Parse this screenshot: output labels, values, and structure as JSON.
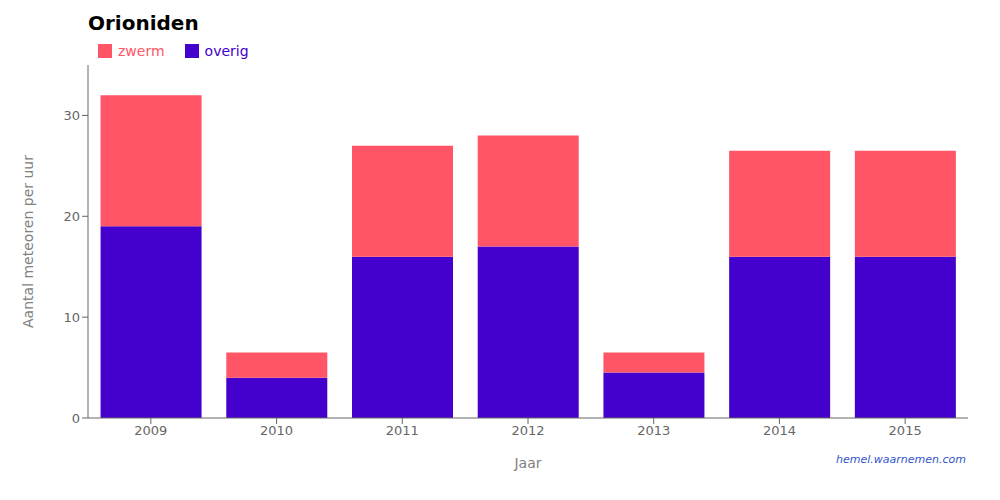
{
  "chart_data": {
    "type": "bar",
    "title": "Orioniden",
    "xlabel": "Jaar",
    "ylabel": "Aantal meteoren per uur",
    "categories": [
      "2009",
      "2010",
      "2011",
      "2012",
      "2013",
      "2014",
      "2015"
    ],
    "series": [
      {
        "name": "overig",
        "color": "#4400cc",
        "values": [
          19,
          4,
          16,
          17,
          4.5,
          16,
          16
        ]
      },
      {
        "name": "zwerm",
        "color": "#ff5566",
        "values": [
          13,
          2.5,
          11,
          11,
          2,
          10.5,
          10.5
        ]
      }
    ],
    "stacked": true,
    "ylim": [
      0,
      35
    ],
    "yticks": [
      0,
      10,
      20,
      30
    ],
    "grid": false,
    "legend": "upper left",
    "annotations": [
      {
        "text": "hemel.waarnemen.com",
        "color": "#3355cc"
      }
    ]
  }
}
